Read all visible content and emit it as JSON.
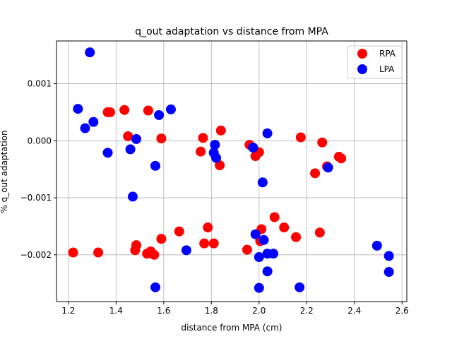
{
  "chart_data": {
    "type": "scatter",
    "title": "q_out adaptation vs distance from MPA",
    "xlabel": "distance from MPA (cm)",
    "ylabel": "% q_out adaptation",
    "xlim": [
      1.15,
      2.62
    ],
    "ylim": [
      -0.00282,
      0.00175
    ],
    "xticks": [
      1.2,
      1.4,
      1.6,
      1.8,
      2.0,
      2.2,
      2.4,
      2.6
    ],
    "xtick_labels": [
      "1.2",
      "1.4",
      "1.6",
      "1.8",
      "2.0",
      "2.2",
      "2.4",
      "2.6"
    ],
    "yticks": [
      0.001,
      0.0,
      -0.001,
      -0.002
    ],
    "ytick_labels": [
      "0.001",
      "0.000",
      "−0.001",
      "−0.002"
    ],
    "grid": true,
    "legend_position": "top-right",
    "series": [
      {
        "name": "RPA",
        "color": "#ff0000",
        "points": [
          [
            1.22,
            -0.00196
          ],
          [
            1.325,
            -0.00196
          ],
          [
            1.365,
            0.0005
          ],
          [
            1.375,
            0.0005
          ],
          [
            1.435,
            0.00054
          ],
          [
            1.45,
            8e-05
          ],
          [
            1.48,
            -0.00192
          ],
          [
            1.485,
            -0.00183
          ],
          [
            1.53,
            -0.00198
          ],
          [
            1.535,
            0.00053
          ],
          [
            1.545,
            -0.00194
          ],
          [
            1.56,
            -0.002
          ],
          [
            1.59,
            4e-05
          ],
          [
            1.59,
            -0.00172
          ],
          [
            1.665,
            -0.00159
          ],
          [
            1.755,
            -0.00019
          ],
          [
            1.765,
            5e-05
          ],
          [
            1.77,
            -0.0018
          ],
          [
            1.785,
            -0.00152
          ],
          [
            1.81,
            -0.0018
          ],
          [
            1.835,
            -0.00043
          ],
          [
            1.84,
            0.00018
          ],
          [
            1.95,
            -0.00191
          ],
          [
            1.96,
            -7e-05
          ],
          [
            1.985,
            -0.00027
          ],
          [
            2.0,
            -0.0002
          ],
          [
            2.005,
            -0.00176
          ],
          [
            2.01,
            -0.00155
          ],
          [
            2.065,
            -0.00134
          ],
          [
            2.105,
            -0.00152
          ],
          [
            2.155,
            -0.00169
          ],
          [
            2.175,
            6e-05
          ],
          [
            2.235,
            -0.00057
          ],
          [
            2.255,
            -0.00161
          ],
          [
            2.265,
            -3e-05
          ],
          [
            2.285,
            -0.00045
          ],
          [
            2.335,
            -0.00028
          ],
          [
            2.345,
            -0.00031
          ]
        ]
      },
      {
        "name": "LPA",
        "color": "#0000ff",
        "points": [
          [
            1.24,
            0.00056
          ],
          [
            1.27,
            0.00022
          ],
          [
            1.29,
            0.00155
          ],
          [
            1.305,
            0.00033
          ],
          [
            1.365,
            -0.00021
          ],
          [
            1.46,
            -0.00015
          ],
          [
            1.47,
            -0.00098
          ],
          [
            1.485,
            3e-05
          ],
          [
            1.565,
            -0.00044
          ],
          [
            1.565,
            -0.00257
          ],
          [
            1.58,
            0.00045
          ],
          [
            1.63,
            0.00055
          ],
          [
            1.695,
            -0.00192
          ],
          [
            1.81,
            -0.00021
          ],
          [
            1.815,
            -7e-05
          ],
          [
            1.82,
            -0.0003
          ],
          [
            1.975,
            -0.00012
          ],
          [
            1.985,
            -0.00164
          ],
          [
            2.0,
            -0.00204
          ],
          [
            2.0,
            -0.00258
          ],
          [
            2.015,
            -0.00073
          ],
          [
            2.02,
            -0.00174
          ],
          [
            2.035,
            0.00013
          ],
          [
            2.035,
            -0.00198
          ],
          [
            2.035,
            -0.00229
          ],
          [
            2.06,
            -0.00198
          ],
          [
            2.17,
            -0.00257
          ],
          [
            2.29,
            -0.00047
          ],
          [
            2.495,
            -0.00184
          ],
          [
            2.545,
            -0.00202
          ],
          [
            2.545,
            -0.0023
          ]
        ]
      }
    ]
  }
}
